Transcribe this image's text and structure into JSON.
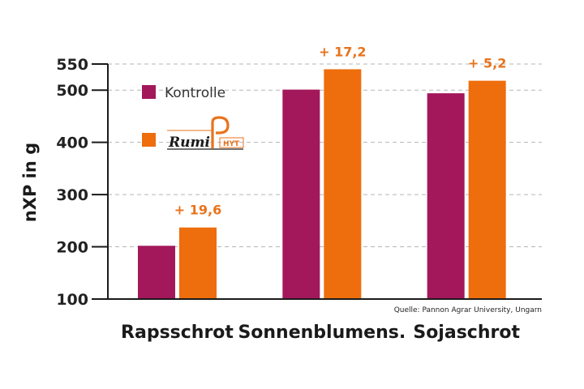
{
  "chart_data": {
    "type": "bar",
    "ylabel": "nXP in g",
    "yticks": [
      100,
      200,
      300,
      400,
      500,
      550
    ],
    "ylim": [
      100,
      550
    ],
    "grid": true,
    "categories": [
      "Rapsschrot",
      "Sonnenblumens.",
      "Sojaschrot"
    ],
    "series": [
      {
        "name": "Kontrolle",
        "color": "#a3185a",
        "values": [
          202,
          501,
          494
        ]
      },
      {
        "name": "",
        "logo": "RumiPHYT",
        "color": "#ee6d0c",
        "values": [
          237,
          540,
          518
        ]
      }
    ],
    "annotations": [
      "+ 19,6",
      "+ 17,2",
      "+ 5,2"
    ],
    "annotation_color": "#e8731c",
    "legend_position": "top-left",
    "source": "Quelle: Pannon Agrar University, Ungarn"
  },
  "logo": {
    "word": "Rumi",
    "suffix": "HYT"
  }
}
